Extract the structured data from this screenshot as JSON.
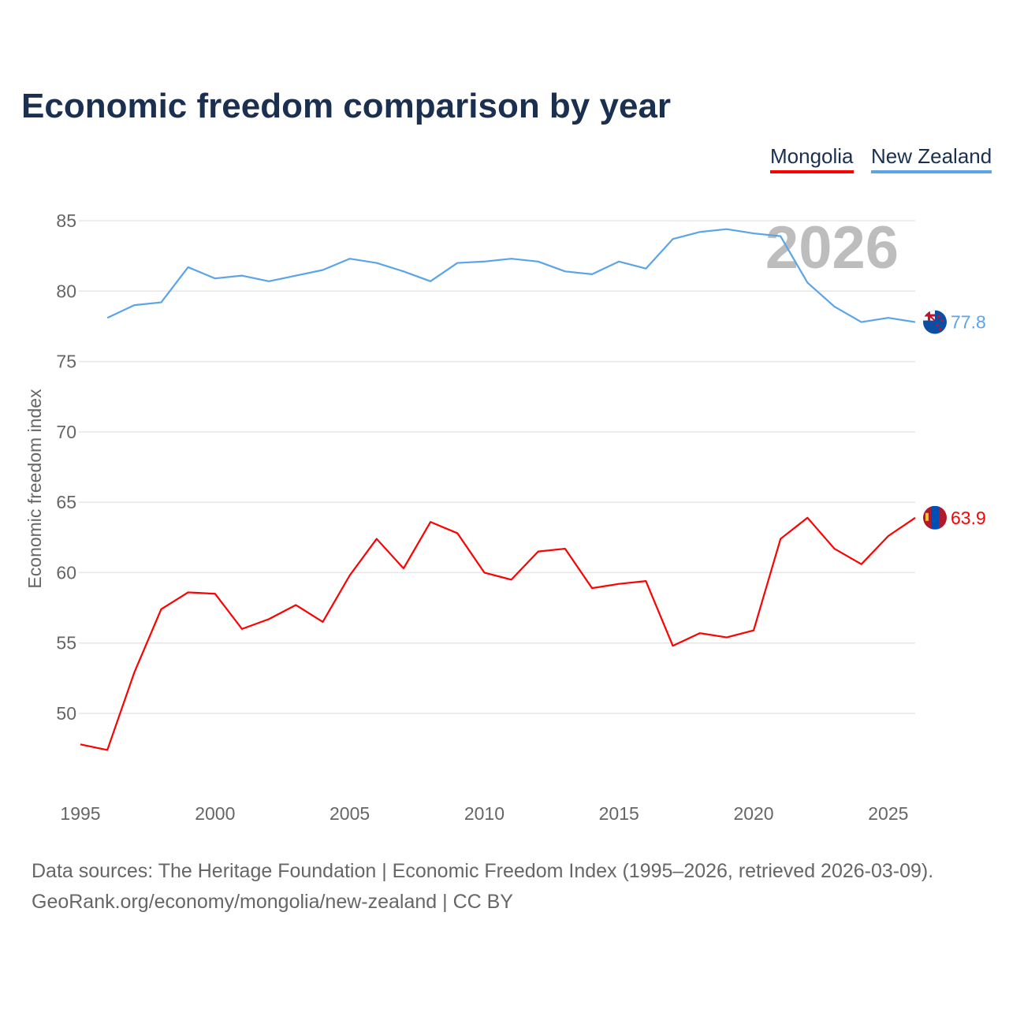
{
  "title": "Economic freedom comparison by year",
  "legend": [
    "Mongolia",
    "New Zealand"
  ],
  "footer": {
    "line1": "Data sources: The Heritage Foundation | Economic Freedom Index (1995–2026, retrieved 2026-03-09).",
    "line2": "GeoRank.org/economy/mongolia/new-zealand | CC BY"
  },
  "chart_data": {
    "type": "line",
    "title": "Economic freedom comparison by year",
    "ylabel": "Economic freedom index",
    "xlabel": "",
    "year_watermark": "2026",
    "xlim": [
      1995,
      2026
    ],
    "ylim": [
      45.5,
      86.5
    ],
    "xticks": [
      1995,
      2000,
      2005,
      2010,
      2015,
      2020,
      2025
    ],
    "yticks": [
      50,
      55,
      60,
      65,
      70,
      75,
      80,
      85
    ],
    "legend_position": "top-right",
    "series": [
      {
        "name": "Mongolia",
        "color": "#ff0000",
        "end_label": "63.9",
        "flag": "mongolia-flag",
        "x": [
          1995,
          1996,
          1997,
          1998,
          1999,
          2000,
          2001,
          2002,
          2003,
          2004,
          2005,
          2006,
          2007,
          2008,
          2009,
          2010,
          2011,
          2012,
          2013,
          2014,
          2015,
          2016,
          2017,
          2018,
          2019,
          2020,
          2021,
          2022,
          2023,
          2024,
          2025,
          2026
        ],
        "values": [
          47.8,
          47.4,
          52.9,
          57.4,
          58.6,
          58.5,
          56.0,
          56.7,
          57.7,
          56.5,
          59.8,
          62.4,
          60.3,
          63.6,
          62.8,
          60.0,
          59.5,
          61.5,
          61.7,
          58.9,
          59.2,
          59.4,
          54.8,
          55.7,
          55.4,
          55.9,
          62.4,
          63.9,
          61.7,
          60.6,
          62.6,
          63.9
        ]
      },
      {
        "name": "New Zealand",
        "color": "#5ba4e8",
        "end_label": "77.8",
        "flag": "new-zealand-flag",
        "x": [
          1996,
          1997,
          1998,
          1999,
          2000,
          2001,
          2002,
          2003,
          2004,
          2005,
          2006,
          2007,
          2008,
          2009,
          2010,
          2011,
          2012,
          2013,
          2014,
          2015,
          2016,
          2017,
          2018,
          2019,
          2020,
          2021,
          2022,
          2023,
          2024,
          2025,
          2026
        ],
        "values": [
          78.1,
          79.0,
          79.2,
          81.7,
          80.9,
          81.1,
          80.7,
          81.1,
          81.5,
          82.3,
          82.0,
          81.4,
          80.7,
          82.0,
          82.1,
          82.3,
          82.1,
          81.4,
          81.2,
          82.1,
          81.6,
          83.7,
          84.2,
          84.4,
          84.1,
          83.9,
          80.6,
          78.9,
          77.8,
          78.1,
          77.8
        ]
      }
    ]
  }
}
